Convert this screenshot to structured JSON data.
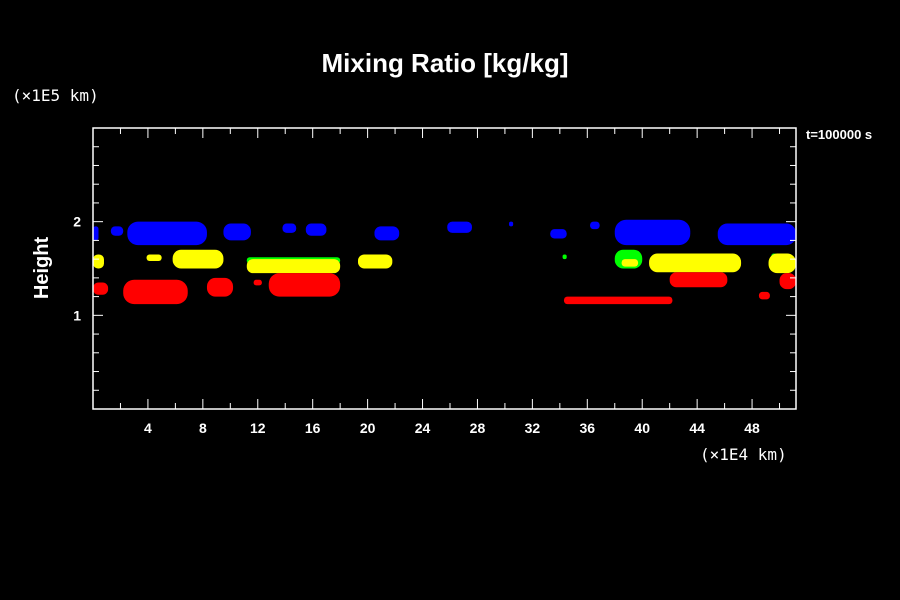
{
  "chart_data": {
    "type": "heatmap",
    "title": "Mixing Ratio [kg/kg]",
    "ylabel": "Height",
    "xlabel": "",
    "x_unit": "(×1E4 km)",
    "y_unit": "(×1E5 km)",
    "time_label": "t=100000 s",
    "xlim": [
      0,
      51.2
    ],
    "ylim": [
      0,
      3
    ],
    "x_ticks": [
      4,
      8,
      12,
      16,
      20,
      24,
      28,
      32,
      36,
      40,
      44,
      48
    ],
    "y_ticks": [
      1,
      2
    ],
    "colors": {
      "blue": "#0000ff",
      "green": "#00ff00",
      "yellow": "#ffff00",
      "red": "#ff0000",
      "background": "#000000",
      "axes": "#ffffff"
    },
    "layers": [
      {
        "color": "blue",
        "blobs": [
          {
            "x": [
              0,
              0.4
            ],
            "y": [
              1.8,
              1.95
            ]
          },
          {
            "x": [
              1.3,
              2.2
            ],
            "y": [
              1.85,
              1.95
            ]
          },
          {
            "x": [
              2.5,
              8.3
            ],
            "y": [
              1.75,
              2.0
            ]
          },
          {
            "x": [
              9.5,
              11.5
            ],
            "y": [
              1.8,
              1.98
            ]
          },
          {
            "x": [
              13.8,
              14.8
            ],
            "y": [
              1.88,
              1.98
            ]
          },
          {
            "x": [
              15.5,
              17.0
            ],
            "y": [
              1.85,
              1.98
            ]
          },
          {
            "x": [
              20.5,
              22.3
            ],
            "y": [
              1.8,
              1.95
            ]
          },
          {
            "x": [
              25.8,
              27.6
            ],
            "y": [
              1.88,
              2.0
            ]
          },
          {
            "x": [
              30.3,
              30.6
            ],
            "y": [
              1.95,
              2.0
            ]
          },
          {
            "x": [
              33.3,
              34.5
            ],
            "y": [
              1.82,
              1.92
            ]
          },
          {
            "x": [
              36.2,
              36.9
            ],
            "y": [
              1.92,
              2.0
            ]
          },
          {
            "x": [
              38.0,
              43.5
            ],
            "y": [
              1.75,
              2.02
            ]
          },
          {
            "x": [
              45.5,
              51.2
            ],
            "y": [
              1.75,
              1.98
            ]
          }
        ]
      },
      {
        "color": "green",
        "blobs": [
          {
            "x": [
              11.2,
              18.0
            ],
            "y": [
              1.55,
              1.62
            ]
          },
          {
            "x": [
              38.0,
              40.0
            ],
            "y": [
              1.5,
              1.7
            ]
          },
          {
            "x": [
              34.2,
              34.5
            ],
            "y": [
              1.6,
              1.65
            ]
          },
          {
            "x": [
              49.4,
              49.8
            ],
            "y": [
              1.6,
              1.66
            ]
          }
        ]
      },
      {
        "color": "yellow",
        "blobs": [
          {
            "x": [
              0,
              0.8
            ],
            "y": [
              1.5,
              1.65
            ]
          },
          {
            "x": [
              3.9,
              5.0
            ],
            "y": [
              1.58,
              1.65
            ]
          },
          {
            "x": [
              5.8,
              9.5
            ],
            "y": [
              1.5,
              1.7
            ]
          },
          {
            "x": [
              11.2,
              18.0
            ],
            "y": [
              1.45,
              1.6
            ]
          },
          {
            "x": [
              19.3,
              21.8
            ],
            "y": [
              1.5,
              1.65
            ]
          },
          {
            "x": [
              38.5,
              39.7
            ],
            "y": [
              1.52,
              1.6
            ]
          },
          {
            "x": [
              40.5,
              47.2
            ],
            "y": [
              1.46,
              1.66
            ]
          },
          {
            "x": [
              49.2,
              51.2
            ],
            "y": [
              1.45,
              1.66
            ]
          }
        ]
      },
      {
        "color": "red",
        "blobs": [
          {
            "x": [
              0,
              1.1
            ],
            "y": [
              1.22,
              1.35
            ]
          },
          {
            "x": [
              2.2,
              6.9
            ],
            "y": [
              1.12,
              1.38
            ]
          },
          {
            "x": [
              8.3,
              10.2
            ],
            "y": [
              1.2,
              1.4
            ]
          },
          {
            "x": [
              11.7,
              12.3
            ],
            "y": [
              1.32,
              1.38
            ]
          },
          {
            "x": [
              12.8,
              18.0
            ],
            "y": [
              1.2,
              1.45
            ]
          },
          {
            "x": [
              34.3,
              42.2
            ],
            "y": [
              1.12,
              1.2
            ]
          },
          {
            "x": [
              42.0,
              46.2
            ],
            "y": [
              1.3,
              1.46
            ]
          },
          {
            "x": [
              48.5,
              49.3
            ],
            "y": [
              1.17,
              1.25
            ]
          },
          {
            "x": [
              50.0,
              51.2
            ],
            "y": [
              1.28,
              1.45
            ]
          }
        ]
      }
    ]
  }
}
